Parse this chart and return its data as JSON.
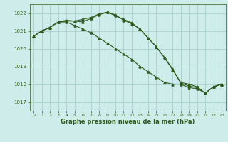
{
  "background_color": "#ceecea",
  "grid_color": "#aed4d0",
  "line_color": "#2d5a1b",
  "marker_color": "#2d5a1b",
  "xlabel": "Graphe pression niveau de la mer (hPa)",
  "xlabel_color": "#2d5a1b",
  "tick_color": "#2d5a1b",
  "ylim": [
    1016.5,
    1022.5
  ],
  "yticks": [
    1017,
    1018,
    1019,
    1020,
    1021,
    1022
  ],
  "xlim": [
    -0.5,
    23.5
  ],
  "xticks": [
    0,
    1,
    2,
    3,
    4,
    5,
    6,
    7,
    8,
    9,
    10,
    11,
    12,
    13,
    14,
    15,
    16,
    17,
    18,
    19,
    20,
    21,
    22,
    23
  ],
  "series1": [
    1020.7,
    1021.0,
    1021.2,
    1021.5,
    1021.55,
    1021.55,
    1021.65,
    1021.75,
    1021.95,
    1022.05,
    1021.85,
    1021.65,
    1021.45,
    1021.1,
    1020.6,
    1020.1,
    1019.5,
    1018.85,
    1018.05,
    1017.9,
    1017.8,
    1017.5,
    1017.85,
    1018.0
  ],
  "series2": [
    1020.7,
    1021.0,
    1021.2,
    1021.5,
    1021.6,
    1021.55,
    1021.5,
    1021.7,
    1021.9,
    1022.05,
    1021.9,
    1021.6,
    1021.4,
    1021.1,
    1020.6,
    1020.1,
    1019.5,
    1018.8,
    1018.1,
    1018.0,
    1017.85,
    1017.5,
    1017.85,
    1018.0
  ],
  "series3": [
    1020.7,
    1021.0,
    1021.2,
    1021.5,
    1021.5,
    1021.3,
    1021.1,
    1020.9,
    1020.6,
    1020.3,
    1020.0,
    1019.7,
    1019.4,
    1019.0,
    1018.7,
    1018.4,
    1018.1,
    1018.0,
    1018.0,
    1017.8,
    1017.75,
    1017.5,
    1017.85,
    1018.0
  ],
  "fig_width": 3.2,
  "fig_height": 2.0,
  "dpi": 100
}
